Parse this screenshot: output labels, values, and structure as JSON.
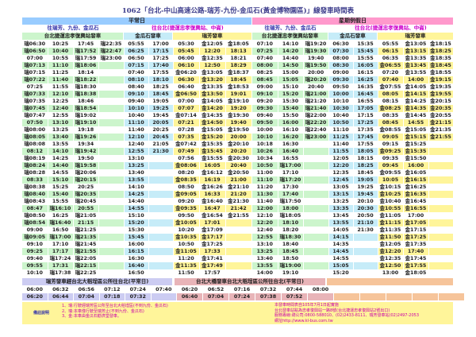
{
  "title": "1062「台北-中山高速公路-瑞芳-九份-金瓜石(黃金博物園區)」線發車時間表",
  "weekday": {
    "label": "平常日",
    "outbound_label": "往瑞芳、九份、金瓜石",
    "inbound_label": "往台北(捷運忠孝復興站、中崙)",
    "headers": {
      "taipei": "台北捷運忠孝復興站發車",
      "jinguashi": "金瓜石發車",
      "ruifang": "瑞芳發車"
    },
    "taipei": [
      [
        "瑞06:30",
        "瑞06:50",
        "07:00",
        "瑞07:13",
        "瑞07:15",
        "瑞07:22",
        "07:25",
        "瑞07:33",
        "瑞07:35",
        "瑞07:45",
        "瑞07:47",
        "07:50",
        "瑞08:00",
        "瑞08:05",
        "瑞08:08",
        "08:12",
        "瑞08:19",
        "瑞08:24",
        "瑞08:28",
        "08:33",
        "瑞08:38",
        "瑞08:40",
        "瑞08:43",
        "08:47",
        "瑞08:50",
        "瑞08:54",
        "09:00",
        "瑞09:05",
        "09:10",
        "09:25",
        "09:40",
        "09:55",
        "10:10"
      ],
      [
        "10:25",
        "10:40",
        "10:55",
        "11:10",
        "11:25",
        "11:40",
        "11:55",
        "12:10",
        "12:25",
        "12:40",
        "12:55",
        "13:10",
        "13:25",
        "13:40",
        "13:55",
        "14:10",
        "14:25",
        "14:40",
        "14:55",
        "15:10",
        "15:25",
        "15:40",
        "15:55",
        "瑞16:10",
        "16:25",
        "瑞16:40",
        "16:50",
        "瑞17:00",
        "17:10",
        "17:17",
        "瑞17:24",
        "17:31",
        "瑞17:38"
      ],
      [
        "17:45",
        "瑞17:52",
        "瑞17:59",
        "瑞18:06",
        "18:14",
        "瑞18:22",
        "瑞18:30",
        "瑞18:38",
        "18:46",
        "瑞18:54",
        "瑞19:02",
        "瑞19:10",
        "19:18",
        "瑞19:26",
        "19:34",
        "瑞19:42",
        "19:50",
        "瑞19:58",
        "瑞20:06",
        "瑞20:15",
        "20:25",
        "瑞20:35",
        "瑞20:45",
        "20:55",
        "瑞21:05",
        "21:15",
        "瑞21:25",
        "瑞21:35",
        "瑞21:45",
        "瑞21:55",
        "瑞22:05",
        "瑞22:15",
        "瑞22:25"
      ],
      [
        "瑞22:35",
        "瑞22:47",
        "瑞23:00"
      ]
    ],
    "jinguashi": [
      [
        "05:55",
        "06:25",
        "06:50",
        "07:15",
        "07:40",
        "08:10",
        "08:40",
        "09:10",
        "09:40",
        "10:10",
        "10:40",
        "11:10",
        "11:40",
        "12:10",
        "12:40",
        "12:55",
        "13:10",
        "13:25",
        "13:40",
        "13:55",
        "14:10",
        "14:25",
        "14:40",
        "14:55",
        "15:10",
        "15:20",
        "15:30",
        "15:45",
        "16:00",
        "16:15",
        "16:30",
        "16:40",
        "16:50"
      ],
      [
        "17:00",
        "17:15",
        "17:25",
        "17:40",
        "17:55",
        "18:10",
        "18:25",
        "18:45",
        "19:05",
        "19:25",
        "19:45",
        "20:05",
        "20:25",
        "20:45",
        "21:05",
        "21:30"
      ]
    ],
    "ruifang": [
      [
        "05:30",
        "05:45",
        "06:00",
        "06:10",
        "金06:20",
        "06:30",
        "06:40",
        "金06:50",
        "07:00",
        "07:07",
        "金07:14",
        "07:21",
        "07:28",
        "07:35",
        "金07:42",
        "07:49",
        "07:56",
        "金08:06",
        "08:20",
        "金08:35",
        "08:50",
        "金09:05",
        "09:20",
        "金09:35",
        "09:50",
        "金10:05",
        "10:20",
        "金10:35",
        "10:50",
        "金11:05",
        "11:20",
        "金11:35",
        "11:50"
      ],
      [
        "金12:05",
        "12:20",
        "金12:35",
        "12:50",
        "金13:05",
        "金13:20",
        "金13:35",
        "金13:50",
        "金14:05",
        "金14:20",
        "金14:35",
        "金14:50",
        "金15:05",
        "金15:20",
        "金15:35",
        "金15:45",
        "金15:55",
        "16:05",
        "金16:12",
        "16:19",
        "金16:26",
        "16:33",
        "金16:40",
        "16:47",
        "金16:54",
        "17:01",
        "金17:09",
        "金17:17",
        "金17:25",
        "17:33",
        "金17:41",
        "金17:49",
        "17:57"
      ],
      [
        "金18:05",
        "18:13",
        "18:21",
        "18:29",
        "金18:37",
        "18:45",
        "金18:53",
        "19:01",
        "金19:10",
        "19:20",
        "金19:30",
        "19:40",
        "金19:50",
        "20:00",
        "金20:10",
        "20:20",
        "金20:30",
        "20:40",
        "金20:50",
        "21:00",
        "金21:10",
        "21:20",
        "金21:30",
        "21:42",
        "金21:55"
      ]
    ]
  },
  "weekend": {
    "label": "星期例假日",
    "outbound_label": "往瑞芳、九份、金瓜石",
    "inbound_label": "往台北(捷運忠孝復興站、中崙)",
    "headers": {
      "taipei": "台北捷運忠孝復興站發車",
      "jinguashi": "金瓜石發車",
      "ruifang": "瑞芳發車"
    },
    "taipei": [
      [
        "07:10",
        "07:25",
        "07:40",
        "08:00",
        "08:25",
        "08:45",
        "09:00",
        "09:10",
        "09:20",
        "09:30",
        "09:40",
        "09:50",
        "10:00",
        "10:10",
        "10:18",
        "10:26",
        "10:34",
        "10:50",
        "11:00",
        "11:10",
        "11:20",
        "11:30",
        "11:40",
        "12:00",
        "12:10",
        "12:20",
        "12:40",
        "12:55",
        "13:10",
        "13:25",
        "13:40",
        "13:55",
        "14:00"
      ],
      [
        "14:10",
        "14:20",
        "14:40",
        "14:50",
        "15:00",
        "15:05",
        "15:10",
        "15:20",
        "15:30",
        "15:40",
        "15:50",
        "16:00",
        "16:10",
        "16:20",
        "16:30",
        "16:40",
        "16:55",
        "瑞17:00",
        "17:10",
        "瑞17:20",
        "17:30",
        "17:40",
        "瑞17:50",
        "18:00",
        "瑞18:05",
        "18:10",
        "18:20",
        "瑞18:30",
        "18:40",
        "18:45",
        "18:50",
        "瑞19:00",
        "19:10"
      ],
      [
        "瑞19:20",
        "瑞19:30",
        "19:40",
        "瑞19:50",
        "20:00",
        "瑞20:20",
        "20:40",
        "瑞21:00",
        "瑞21:20",
        "瑞21:40",
        "瑞22:00",
        "瑞22:20",
        "瑞22:40",
        "瑞23:00"
      ]
    ],
    "jinguashi": [
      [
        "06:30",
        "07:30",
        "08:00",
        "08:30",
        "09:00",
        "09:30",
        "09:50",
        "10:00",
        "10:10",
        "10:30",
        "10:40",
        "10:50",
        "11:10",
        "11:25",
        "11:40",
        "11:55",
        "12:05",
        "12:20",
        "12:35",
        "12:45",
        "13:05",
        "13:15",
        "13:25",
        "13:35",
        "13:45",
        "13:55",
        "14:05",
        "14:15",
        "14:35",
        "14:45",
        "14:55",
        "15:05",
        "15:20"
      ],
      [
        "15:35",
        "15:45",
        "15:55",
        "16:05",
        "16:15",
        "16:25",
        "16:35",
        "16:45",
        "16:55",
        "17:05",
        "17:15",
        "17:25",
        "17:35",
        "17:45",
        "17:55",
        "18:05",
        "18:15",
        "18:25",
        "18:45",
        "19:05",
        "19:25",
        "19:45",
        "20:10",
        "20:30",
        "20:50",
        "21:10",
        "21:30"
      ]
    ],
    "ruifang": [
      [
        "05:55",
        "06:15",
        "06:35",
        "金06:55",
        "07:20",
        "07:40",
        "金07:55",
        "08:05",
        "08:15",
        "金08:25",
        "08:35",
        "08:45",
        "金08:55",
        "09:05",
        "09:15",
        "金09:25",
        "09:35",
        "09:45",
        "金09:55",
        "10:05",
        "金10:15",
        "金10:25",
        "金10:40",
        "金10:55",
        "金11:05",
        "金11:15",
        "金11:35",
        "金11:50",
        "金12:05",
        "金12:20",
        "金12:35",
        "金12:50",
        "13:00"
      ],
      [
        "金13:05",
        "金13:15",
        "金13:35",
        "金13:45",
        "金13:55",
        "14:00",
        "金14:05",
        "金14:15",
        "金14:25",
        "金14:35",
        "金14:45",
        "14:55",
        "金15:05",
        "金15:15",
        "金15:25",
        "金15:35",
        "金15:50",
        "16:00",
        "金16:05",
        "金16:15",
        "金16:25",
        "金16:35",
        "金16:45",
        "金16:55",
        "17:00",
        "金17:05",
        "金17:15",
        "金17:25",
        "金17:35",
        "17:40",
        "金17:45",
        "金17:55",
        "金18:05"
      ],
      [
        "金18:15",
        "金18:25",
        "金18:35",
        "金18:45",
        "金18:55",
        "金19:15",
        "金19:35",
        "金19:55",
        "金20:15",
        "金20:35",
        "金20:55",
        "金21:15",
        "金21:35",
        "金21:55"
      ]
    ]
  },
  "express": {
    "ruifang_label": "瑞芳發車經台北大稻埕區公所往台北(平常日)",
    "daqiao_label": "台北大橋發車台北大稻埕區公所往台北(平常日)",
    "ruifang_rows": [
      [
        "06:00",
        "06:32",
        "06:56",
        "07:12",
        "07:24",
        "07:40"
      ],
      [
        "06:20",
        "06:44",
        "07:04",
        "07:18",
        "07:32",
        ""
      ]
    ],
    "daqiao_rows": [
      [
        "06:20",
        "06:52",
        "07:16",
        "07:32",
        "07:44",
        "08:00"
      ],
      [
        "06:40",
        "07:04",
        "07:24",
        "07:38",
        "07:52",
        ""
      ]
    ]
  },
  "notes": {
    "label": "備註說明",
    "left": [
      "1、瑞:行駛經瑞芳區公所至台北大稻埕區(不到九份、金瓜石)",
      "2、瑞:本車僅行駛至瑞芳止(不到九份、金瓜石)",
      "3、金:本車由金瓜石勸濟堂發車。"
    ],
    "right": [
      "本發車時間表自105年7月1日起實施",
      "台北發車站點為忠孝復興站一路8號(台北捷運忠孝復興站2號出口)",
      "服務專線:總公司:0800-588010、(02)2433-8111、瑞芳發車站(02)2497-2053",
      "網址http://www.kl-bus.com.tw"
    ]
  },
  "colors": {
    "weekday_bar": "#99ccff",
    "weekend_bar": "#ff99cc",
    "taipei": "#ccf5cc",
    "jinguashi": "#c6ecf8",
    "ruifang": "#fff59a",
    "notes_text": "#cc00aa"
  }
}
